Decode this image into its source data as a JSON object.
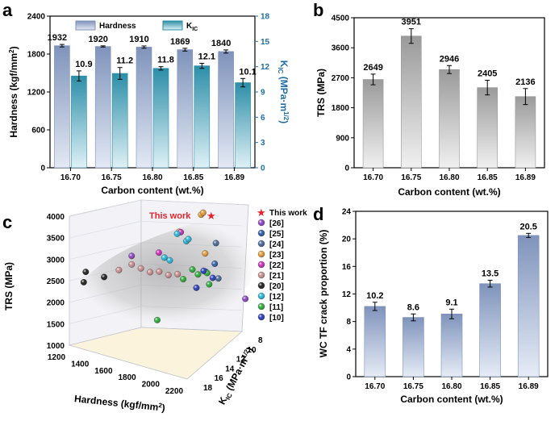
{
  "chart_data": [
    {
      "panel": "a",
      "type": "bar",
      "categories": [
        "16.70",
        "16.75",
        "16.80",
        "16.85",
        "16.89"
      ],
      "xlabel": "Carbon content (wt.%)",
      "ylabel": "Hardness (kgf/mm²)",
      "ylabel_right": "KIC (MPa·m1/2)",
      "ylim": [
        0,
        2400
      ],
      "yticks": [
        0,
        600,
        1200,
        1800,
        2400
      ],
      "ylim_right": [
        0,
        18
      ],
      "yticks_right": [
        0,
        3,
        6,
        9,
        12,
        15,
        18
      ],
      "legend": "top",
      "series": [
        {
          "name": "Hardness",
          "axis": "left",
          "values": [
            1932,
            1920,
            1910,
            1869,
            1840
          ],
          "errors": [
            20,
            10,
            18,
            22,
            25
          ],
          "labels": [
            "1932",
            "1920",
            "1910",
            "1869",
            "1840"
          ],
          "color": "#8c9fc2"
        },
        {
          "name": "KIC",
          "axis": "right",
          "values": [
            10.9,
            11.2,
            11.8,
            12.1,
            10.1
          ],
          "errors": [
            0.6,
            0.7,
            0.2,
            0.3,
            0.5
          ],
          "labels": [
            "10.9",
            "11.2",
            "11.8",
            "12.1",
            "10.1"
          ],
          "color": "#4aa2b8"
        }
      ]
    },
    {
      "panel": "b",
      "type": "bar",
      "categories": [
        "16.70",
        "16.75",
        "16.80",
        "16.85",
        "16.89"
      ],
      "xlabel": "Carbon content (wt.%)",
      "ylabel": "TRS (MPa)",
      "ylim": [
        0,
        4500
      ],
      "yticks": [
        0,
        900,
        1800,
        2700,
        3600,
        4500
      ],
      "series": [
        {
          "values": [
            2649,
            3951,
            2946,
            2405,
            2136
          ],
          "errors": [
            160,
            220,
            120,
            220,
            240
          ],
          "labels": [
            "2649",
            "3951",
            "2946",
            "2405",
            "2136"
          ],
          "color": "#a8a8a8"
        }
      ]
    },
    {
      "panel": "c",
      "type": "scatter",
      "projection": "3d",
      "xlabel": "Hardness (kgf/mm²)",
      "ylabel": "KIC (MPa·m1/2)",
      "zlabel": "TRS (MPa)",
      "xlim": [
        1200,
        2200
      ],
      "xticks": [
        1200,
        1400,
        1600,
        1800,
        2000,
        2200
      ],
      "ylim": [
        8,
        18
      ],
      "yticks": [
        8,
        10,
        12,
        14,
        16,
        18
      ],
      "zlim": [
        1000,
        4000
      ],
      "zticks": [
        1000,
        1500,
        2000,
        2500,
        3000,
        3500,
        4000
      ],
      "annotation": "This work",
      "legend": "right",
      "series": [
        {
          "name": "This work",
          "marker": "star",
          "color": "#e8222b",
          "points": [
            [
              1932,
              10.9,
              2649
            ],
            [
              1920,
              11.2,
              3951
            ],
            [
              1910,
              11.8,
              2946
            ],
            [
              1869,
              12.1,
              2405
            ],
            [
              1840,
              10.1,
              2136
            ]
          ]
        },
        {
          "name": "[26]",
          "color": "#8e44c4",
          "points": [
            [
              2150,
              8.3,
              1800
            ],
            [
              1500,
              14.0,
              3100
            ]
          ]
        },
        {
          "name": "[25]",
          "color": "#2f5fa8",
          "points": [
            [
              2050,
              11.0,
              2900
            ],
            [
              2000,
              11.5,
              2750
            ]
          ]
        },
        {
          "name": "[24]",
          "color": "#4a6a99",
          "points": [
            [
              1900,
              8.5,
              3100
            ],
            [
              2050,
              10.5,
              2500
            ]
          ]
        },
        {
          "name": "[23]",
          "color": "#e29a3a",
          "points": [
            [
              1800,
              9.0,
              3800
            ],
            [
              1850,
              9.5,
              3900
            ],
            [
              1700,
              10.5,
              3500
            ],
            [
              1900,
              10.0,
              3000
            ]
          ]
        },
        {
          "name": "[22]",
          "color": "#c730b8",
          "points": [
            [
              1650,
              9.5,
              3400
            ],
            [
              1550,
              11.0,
              3000
            ]
          ]
        },
        {
          "name": "[21]",
          "color": "#c98d8d",
          "points": [
            [
              1500,
              14.0,
              2900
            ],
            [
              1550,
              13.5,
              2800
            ],
            [
              1600,
              13.0,
              2700
            ],
            [
              1650,
              12.5,
              2700
            ],
            [
              1700,
              12.0,
              2600
            ],
            [
              1750,
              11.5,
              2600
            ],
            [
              1450,
              15.0,
              2800
            ]
          ]
        },
        {
          "name": "[20]",
          "color": "#222222",
          "points": [
            [
              1200,
              16.0,
              2400
            ],
            [
              1250,
              16.5,
              2700
            ],
            [
              1350,
              15.5,
              2600
            ]
          ]
        },
        {
          "name": "[12]",
          "color": "#2ab5d6",
          "points": [
            [
              1700,
              9.5,
              3200
            ],
            [
              1650,
              10.0,
              3400
            ],
            [
              1750,
              10.0,
              3300
            ],
            [
              1600,
              11.0,
              2900
            ],
            [
              1680,
              11.5,
              2900
            ]
          ]
        },
        {
          "name": "[11]",
          "color": "#2eaa3a",
          "points": [
            [
              1600,
              12.0,
              1500
            ],
            [
              1850,
              11.0,
              2700
            ],
            [
              1800,
              11.5,
              2500
            ],
            [
              1900,
              11.0,
              2600
            ],
            [
              1950,
              10.5,
              2600
            ],
            [
              2000,
              11.0,
              2400
            ]
          ]
        },
        {
          "name": "[10]",
          "color": "#2a3fb8",
          "points": [
            [
              1950,
              11.0,
              2700
            ],
            [
              2000,
              10.5,
              2500
            ],
            [
              1950,
              12.0,
              2400
            ]
          ]
        }
      ]
    },
    {
      "panel": "d",
      "type": "bar",
      "categories": [
        "16.70",
        "16.75",
        "16.80",
        "16.85",
        "16.89"
      ],
      "xlabel": "Carbon content (wt.%)",
      "ylabel": "WC TF crack proportion (%)",
      "ylim": [
        0,
        24
      ],
      "yticks": [
        0,
        4,
        8,
        12,
        16,
        20,
        24
      ],
      "series": [
        {
          "values": [
            10.2,
            8.6,
            9.1,
            13.5,
            20.5
          ],
          "errors": [
            0.6,
            0.5,
            0.7,
            0.5,
            0.3
          ],
          "labels": [
            "10.2",
            "8.6",
            "9.1",
            "13.5",
            "20.5"
          ],
          "color": "#8c9fc2"
        }
      ]
    }
  ],
  "panels": {
    "a": "a",
    "b": "b",
    "c": "c",
    "d": "d"
  },
  "colors": {
    "blue_axis": "#1e6fa8",
    "star": "#e8222b"
  }
}
